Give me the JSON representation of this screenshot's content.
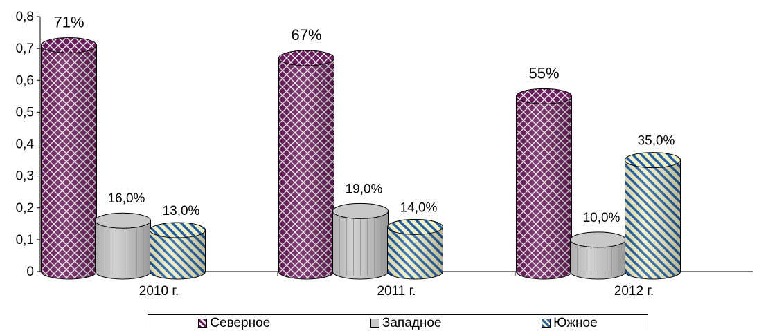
{
  "chart_data": {
    "type": "bar",
    "categories": [
      "2010 г.",
      "2011 г.",
      "2012 г."
    ],
    "series": [
      {
        "name": "Северное",
        "values": [
          0.71,
          0.67,
          0.55
        ],
        "labels": [
          "71%",
          "67%",
          "55%"
        ]
      },
      {
        "name": "Западное",
        "values": [
          0.16,
          0.19,
          0.1
        ],
        "labels": [
          "16,0%",
          "19,0%",
          "10,0%"
        ]
      },
      {
        "name": "Южное",
        "values": [
          0.13,
          0.14,
          0.35
        ],
        "labels": [
          "13,0%",
          "14,0%",
          "35,0%"
        ]
      }
    ],
    "yticks": [
      "0",
      "0,1",
      "0,2",
      "0,3",
      "0,4",
      "0,5",
      "0,6",
      "0,7",
      "0,8"
    ],
    "ylim": [
      0,
      0.8
    ],
    "legend_position": "bottom",
    "grid": false,
    "colors": {
      "Северное": "#6a1b5a",
      "Западное": "#c8c8c8",
      "Южное": "#1f5fa8",
      "south_background": "#f3f1c4"
    }
  }
}
